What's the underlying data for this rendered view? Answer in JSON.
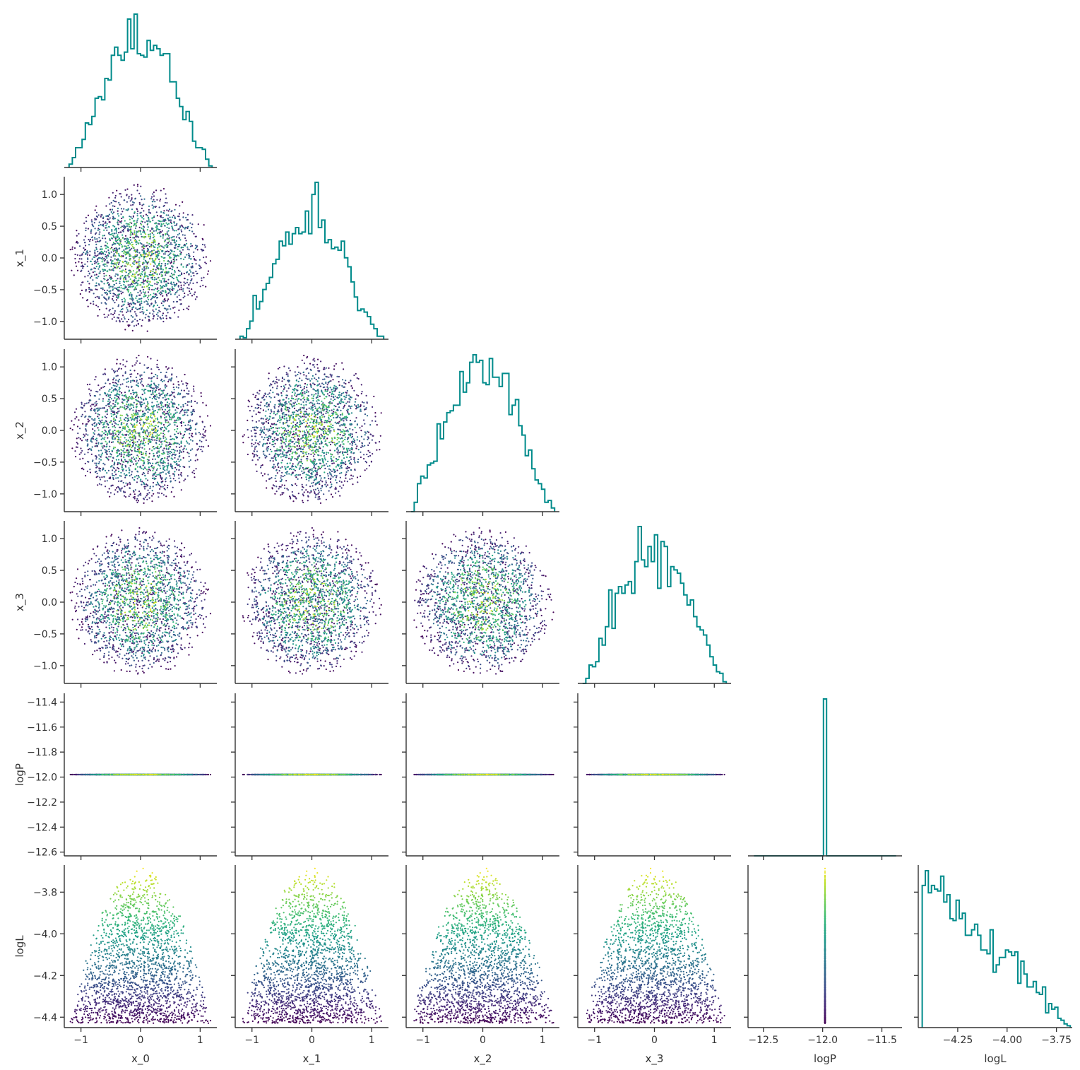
{
  "chart_data": {
    "type": "scatter",
    "layout": "corner-pairplot",
    "title": "",
    "variables": [
      "x_0",
      "x_1",
      "x_2",
      "x_3",
      "logP",
      "logL"
    ],
    "color_by": "logL",
    "colormap": "viridis",
    "hist_color": "#008b8b",
    "grid": false,
    "legend": "none",
    "n_points_approx": 2000,
    "ranges": {
      "x_0": [
        -1.28,
        1.28
      ],
      "x_1": [
        -1.28,
        1.28
      ],
      "x_2": [
        -1.28,
        1.28
      ],
      "x_3": [
        -1.28,
        1.28
      ],
      "logP": [
        -12.63,
        -11.33
      ],
      "logL": [
        -4.45,
        -3.67
      ]
    },
    "tick_labels": {
      "x_0": [
        "−1",
        "0",
        "1"
      ],
      "x_1": [
        "−1",
        "0",
        "1"
      ],
      "x_2": [
        "−1",
        "0",
        "1"
      ],
      "x_3": [
        "−1",
        "0",
        "1"
      ],
      "logP": [
        "−12.5",
        "−12.0",
        "−11.5"
      ],
      "logL": [
        "−4.25",
        "−4.00",
        "−3.75"
      ]
    },
    "row_tick_labels": {
      "x_1": [
        "1.0",
        "0.5",
        "0.0",
        "−0.5",
        "−1.0"
      ],
      "x_2": [
        "1.0",
        "0.5",
        "0.0",
        "−0.5",
        "−1.0"
      ],
      "x_3": [
        "1.0",
        "0.5",
        "0.0",
        "−0.5",
        "−1.0"
      ],
      "logP": [
        "−11.4",
        "−11.6",
        "−11.8",
        "−12.0",
        "−12.2",
        "−12.4",
        "−12.6"
      ],
      "logL": [
        "−3.8",
        "−4.0",
        "−4.2",
        "−4.4"
      ]
    },
    "distributions": {
      "x_i": "approximately uniform within unit ball, marginal peaked at 0, support [-1.2, 1.2]",
      "logP": "constant at -11.98",
      "logL": "range [-4.43, -3.68], decreasing histogram"
    }
  }
}
